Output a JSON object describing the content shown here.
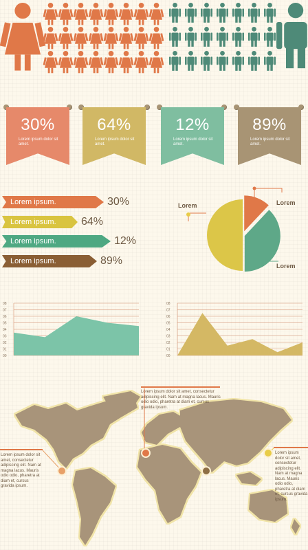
{
  "colors": {
    "orange": "#e07848",
    "mustard": "#d4b84e",
    "teal": "#5ea888",
    "brown": "#8e6e44",
    "beige": "#a89474",
    "slate_green": "#4e8a78",
    "background": "#fdf8ec",
    "map_land": "#a8947a"
  },
  "female_icon": "female-person-icon",
  "male_icon": "male-person-icon",
  "banners": [
    {
      "value": "30%",
      "text": "Lorem ipsum dolor sit amet.",
      "color": "#e6896a"
    },
    {
      "value": "64%",
      "text": "Lorem ipsum dolor sit amet.",
      "color": "#d1b865"
    },
    {
      "value": "12%",
      "text": "Lorem ipsum dolor sit amet.",
      "color": "#7fbea0"
    },
    {
      "value": "89%",
      "text": "Lorem ipsum dolor sit amet.",
      "color": "#a89474"
    }
  ],
  "arrows": [
    {
      "label": "Lorem ipsum.",
      "value": "30%",
      "color": "#e07848",
      "fill": 30
    },
    {
      "label": "Lorem ipsum.",
      "value": "64%",
      "color": "#d9c440",
      "fill": 64
    },
    {
      "label": "Lorem ipsum.",
      "value": "12%",
      "color": "#4ea882",
      "fill": 12
    },
    {
      "label": "Lorem ipsum.",
      "value": "89%",
      "color": "#8a5e34",
      "fill": 89
    }
  ],
  "pie": {
    "labels": [
      "Lorem",
      "Lorem",
      "Lorem"
    ],
    "slices": [
      {
        "value": 12,
        "color": "#e07848"
      },
      {
        "value": 38,
        "color": "#5ea888"
      },
      {
        "value": 50,
        "color": "#dcc648"
      }
    ]
  },
  "area_charts": [
    {
      "color": "#7cc4a8",
      "ticks": [
        "08",
        "07",
        "06",
        "05",
        "04",
        "03",
        "02",
        "01",
        "00"
      ],
      "values": [
        3.5,
        2.8,
        6.0,
        5.0,
        4.5
      ]
    },
    {
      "color": "#d4b864",
      "ticks": [
        "08",
        "07",
        "06",
        "05",
        "04",
        "03",
        "02",
        "01",
        "00"
      ],
      "values": [
        0,
        6.5,
        1.5,
        2.5,
        0.5,
        2.0
      ]
    }
  ],
  "map": {
    "top_note": "Lorem ipsum dolor sit amet, consectetur adipiscing elit. Nam at magna lacus. Mauris odio odio, pharetra at diam et, cursus gravida ipsum.",
    "left_note": "Lorem ipsum dolor sit amet, consectetur adipiscing elit. Nam at magna lacus. Mauris odio odio, pharetra at diam et, cursus gravida ipsum.",
    "right_note": "Lorem ipsum dolor sit amet, consectetur adipiscing elit. Nam at magna lacus. Mauris odio odio, pharetra at diam et, cursus gravida ipsum.",
    "markers": [
      {
        "name": "americas-marker",
        "color": "#e8a068"
      },
      {
        "name": "europe-marker",
        "color": "#e07848"
      },
      {
        "name": "asia-marker",
        "color": "#8e6e44"
      },
      {
        "name": "east-asia-marker",
        "color": "#e8cc48"
      }
    ]
  }
}
